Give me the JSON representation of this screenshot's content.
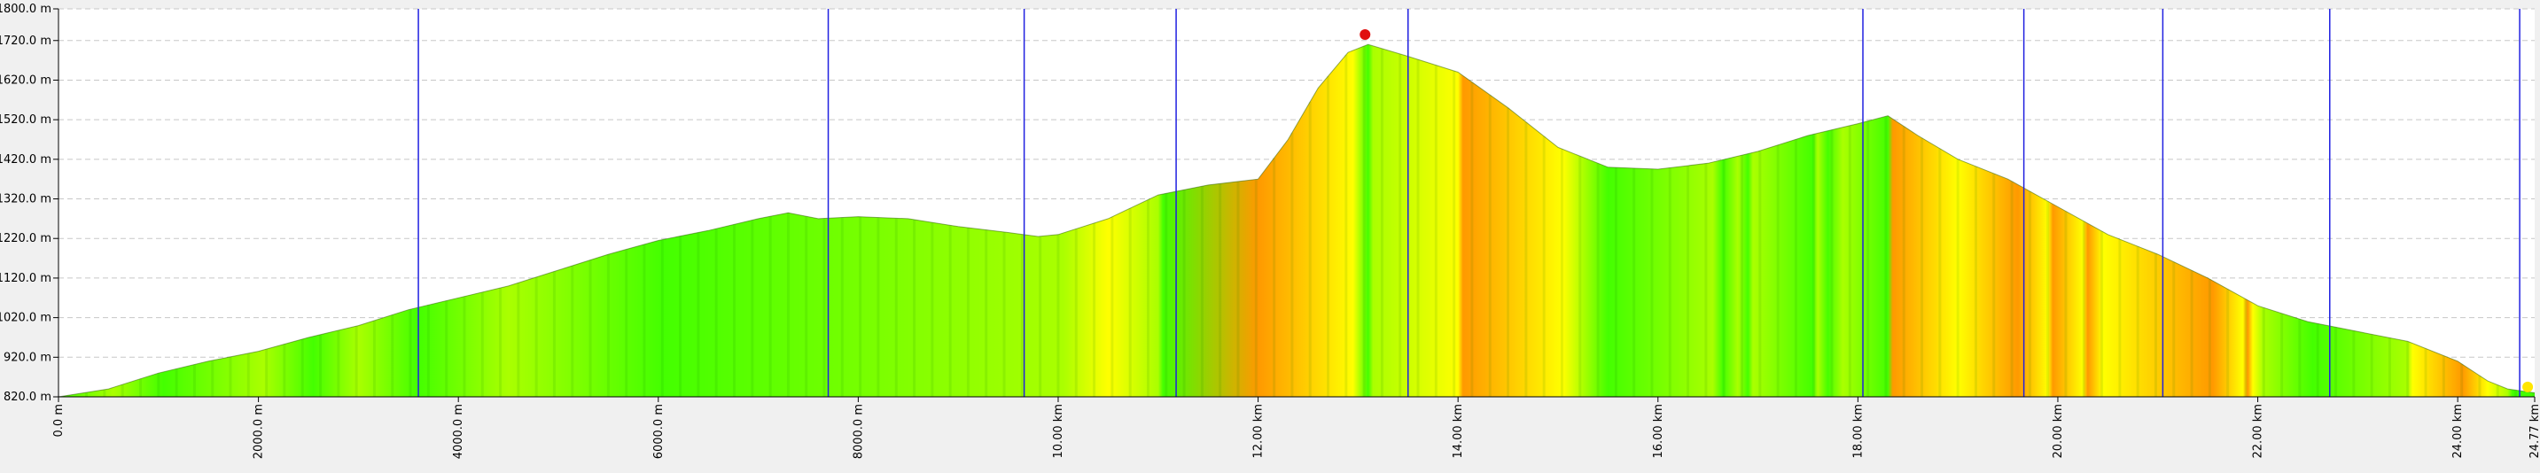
{
  "chart_data": {
    "type": "area",
    "title": "",
    "xlabel": "",
    "ylabel": "",
    "xlim": [
      0,
      24.77
    ],
    "ylim": [
      820,
      1800
    ],
    "grid": true,
    "y_ticks": [
      {
        "value": 820,
        "label": "820.0 m"
      },
      {
        "value": 920,
        "label": "920.0 m"
      },
      {
        "value": 1020,
        "label": "1020.0 m"
      },
      {
        "value": 1120,
        "label": "1120.0 m"
      },
      {
        "value": 1220,
        "label": "1220.0 m"
      },
      {
        "value": 1320,
        "label": "1320.0 m"
      },
      {
        "value": 1420,
        "label": "1420.0 m"
      },
      {
        "value": 1520,
        "label": "1520.0 m"
      },
      {
        "value": 1620,
        "label": "1620.0 m"
      },
      {
        "value": 1720,
        "label": "1720.0 m"
      },
      {
        "value": 1800,
        "label": "1800.0 m"
      }
    ],
    "x_ticks": [
      {
        "value": 0,
        "label": "0.0 m"
      },
      {
        "value": 2,
        "label": "2000.0 m"
      },
      {
        "value": 4,
        "label": "4000.0 m"
      },
      {
        "value": 6,
        "label": "6000.0 m"
      },
      {
        "value": 8,
        "label": "8000.0 m"
      },
      {
        "value": 10,
        "label": "10.00 km"
      },
      {
        "value": 12,
        "label": "12.00 km"
      },
      {
        "value": 14,
        "label": "14.00 km"
      },
      {
        "value": 16,
        "label": "16.00 km"
      },
      {
        "value": 18,
        "label": "18.00 km"
      },
      {
        "value": 20,
        "label": "20.00 km"
      },
      {
        "value": 22,
        "label": "22.00 km"
      },
      {
        "value": 24,
        "label": "24.00 km"
      },
      {
        "value": 24.77,
        "label": "24.77 km"
      }
    ],
    "series": [
      {
        "x": [
          0,
          0.5,
          1,
          1.5,
          2,
          2.5,
          3,
          3.5,
          4,
          4.5,
          5,
          5.5,
          6,
          6.5,
          7,
          7.3,
          7.6,
          8,
          8.5,
          9,
          9.5,
          9.8,
          10,
          10.5,
          11,
          11.5,
          12,
          12.3,
          12.6,
          12.9,
          13.1,
          13.5,
          14,
          14.5,
          15,
          15.5,
          16,
          16.5,
          17,
          17.5,
          18,
          18.3,
          18.6,
          19,
          19.5,
          20,
          20.5,
          21,
          21.5,
          22,
          22.5,
          23,
          23.5,
          24,
          24.3,
          24.5,
          24.77
        ],
        "y": [
          820,
          840,
          880,
          910,
          935,
          970,
          1000,
          1040,
          1070,
          1100,
          1140,
          1180,
          1215,
          1240,
          1270,
          1285,
          1270,
          1275,
          1270,
          1250,
          1235,
          1225,
          1230,
          1270,
          1330,
          1355,
          1370,
          1470,
          1600,
          1690,
          1710,
          1680,
          1640,
          1550,
          1450,
          1400,
          1395,
          1410,
          1440,
          1480,
          1510,
          1530,
          1480,
          1420,
          1370,
          1300,
          1230,
          1180,
          1120,
          1050,
          1010,
          985,
          960,
          910,
          860,
          840,
          830
        ]
      }
    ],
    "vertical_markers_km": [
      3.6,
      7.7,
      9.66,
      11.18,
      13.5,
      18.05,
      19.66,
      21.05,
      22.72,
      24.62
    ],
    "peak_marker": {
      "x": 13.07,
      "y": 1735
    },
    "end_marker": {
      "x": 24.7,
      "y": 845
    },
    "colors": {
      "background": "#f0f0f0",
      "plot_bg": "#ffffff",
      "grid": "#c8c8c8",
      "marker_line": "#2020e0",
      "peak": "#e01010",
      "end": "#ffe600",
      "green": "#44ff00",
      "yellow": "#ffff00",
      "orange": "#ff9900"
    }
  }
}
